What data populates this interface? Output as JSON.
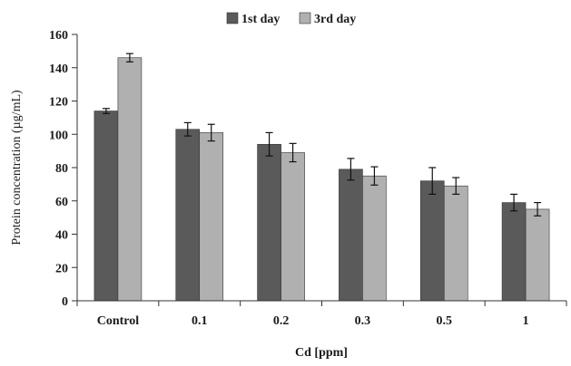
{
  "chart_data": {
    "type": "bar",
    "title": "",
    "xlabel": "Cd [ppm]",
    "ylabel": "Protein concentration (µg/mL)",
    "ylim": [
      0,
      160
    ],
    "yticks": [
      0,
      20,
      40,
      60,
      80,
      100,
      120,
      140,
      160
    ],
    "grid": false,
    "legend_position": "top-center",
    "categories": [
      "Control",
      "0.1",
      "0.2",
      "0.3",
      "0.5",
      "1"
    ],
    "series": [
      {
        "name": "1st day",
        "color": "#5a5a5a",
        "values": [
          114,
          103,
          94,
          79,
          72,
          59
        ],
        "errors": [
          1.5,
          4,
          7,
          6.5,
          8,
          5
        ]
      },
      {
        "name": "3rd day",
        "color": "#b0b0b0",
        "values": [
          146,
          101,
          89,
          75,
          69,
          55
        ],
        "errors": [
          2.5,
          5,
          5.5,
          5.5,
          5,
          4
        ]
      }
    ]
  }
}
